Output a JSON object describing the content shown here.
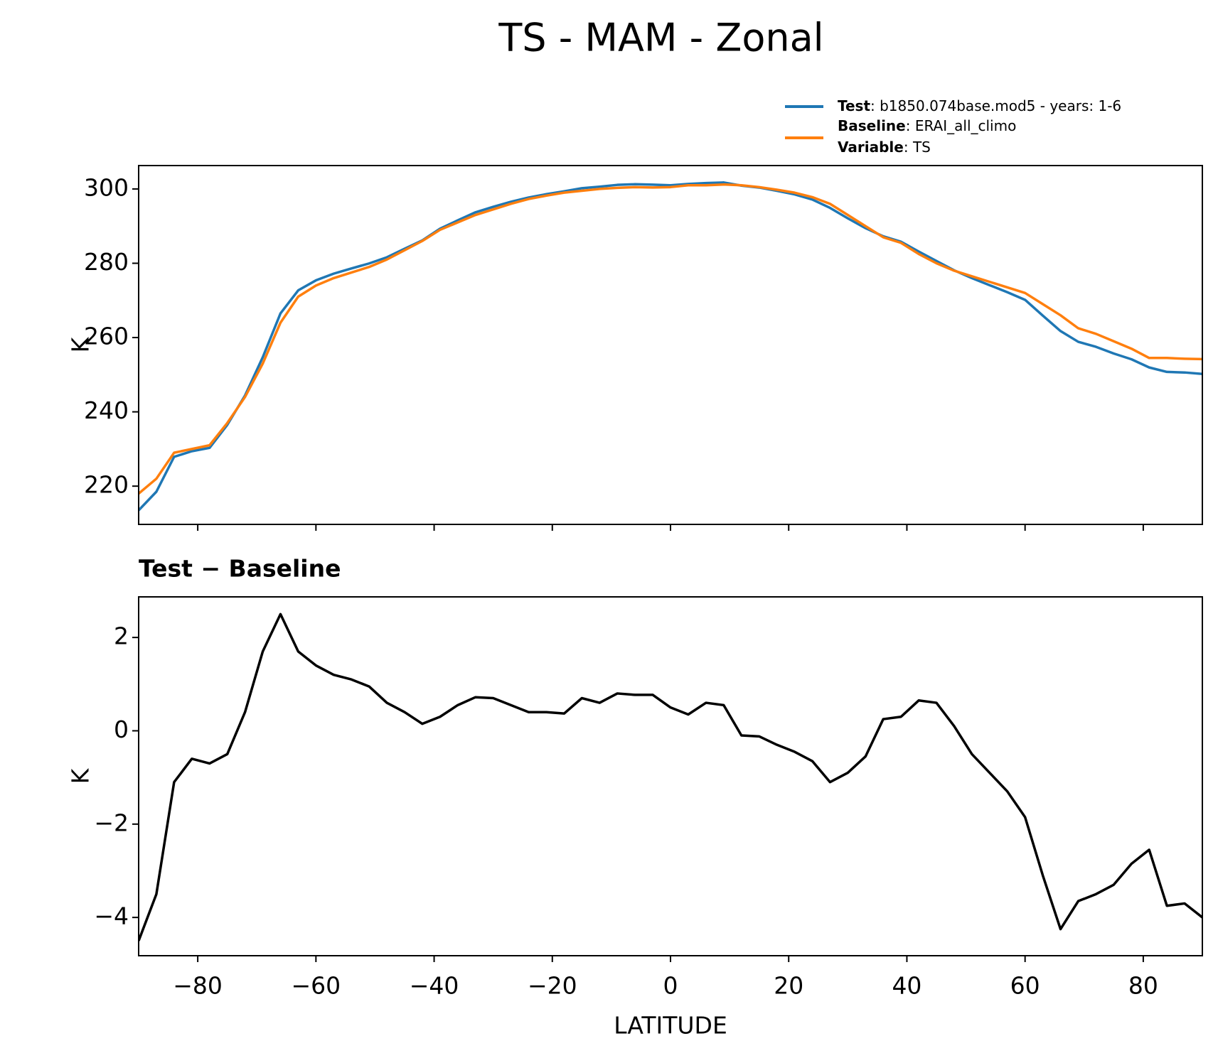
{
  "title": "TS - MAM - Zonal",
  "legend": {
    "variable": {
      "name": "Variable",
      "value": ": TS"
    }
  },
  "chart_data": [
    {
      "type": "line",
      "ylabel": "K",
      "x": [
        -90,
        -87,
        -84,
        -81,
        -78,
        -75,
        -72,
        -69,
        -66,
        -63,
        -60,
        -57,
        -54,
        -51,
        -48,
        -45,
        -42,
        -39,
        -36,
        -33,
        -30,
        -27,
        -24,
        -21,
        -18,
        -15,
        -12,
        -9,
        -6,
        -3,
        0,
        3,
        6,
        9,
        12,
        15,
        18,
        21,
        24,
        27,
        30,
        33,
        36,
        39,
        42,
        45,
        48,
        51,
        54,
        57,
        60,
        63,
        66,
        69,
        72,
        75,
        78,
        81,
        84,
        87,
        90
      ],
      "series": [
        {
          "name": "Test",
          "description": ": b1850.074base.mod5 - years: 1-6",
          "color": "#1f77b4",
          "values": [
            213.5,
            218.5,
            227.9,
            229.4,
            230.3,
            236.5,
            244.4,
            254.7,
            266.5,
            272.7,
            275.4,
            277.2,
            278.6,
            279.95,
            281.6,
            283.9,
            286.15,
            289.3,
            291.55,
            293.72,
            295.2,
            296.55,
            297.7,
            298.6,
            299.37,
            300.2,
            300.6,
            301.1,
            301.27,
            301.17,
            301,
            301.35,
            301.6,
            301.75,
            300.9,
            300.38,
            299.5,
            298.55,
            297.15,
            294.9,
            292.1,
            289.45,
            287.25,
            285.8,
            283.15,
            280.6,
            278.1,
            276,
            274.1,
            272.2,
            270.15,
            265.9,
            261.75,
            258.85,
            257.5,
            255.7,
            254.15,
            251.95,
            250.75,
            250.6,
            250.2
          ]
        },
        {
          "name": "Baseline",
          "description": ": ERAI_all_climo",
          "color": "#ff7f0e",
          "values": [
            218,
            222,
            229,
            230,
            231,
            237,
            244,
            253,
            264,
            271,
            274,
            276,
            277.5,
            279,
            281,
            283.5,
            286,
            289,
            291,
            293,
            294.5,
            296,
            297.3,
            298.2,
            299,
            299.5,
            300,
            300.3,
            300.5,
            300.4,
            300.5,
            301,
            301,
            301.2,
            301,
            300.5,
            299.8,
            299,
            297.8,
            296,
            293,
            290,
            287,
            285.5,
            282.5,
            280,
            278,
            276.5,
            275,
            273.5,
            272,
            269,
            266,
            262.5,
            261,
            259,
            257,
            254.5,
            254.5,
            254.3,
            254.2
          ]
        }
      ],
      "xlim": [
        -90,
        90
      ],
      "xticks": [
        -80,
        -60,
        -40,
        -20,
        0,
        20,
        40,
        60,
        80
      ],
      "ylim": [
        209.7,
        306.3
      ],
      "yticks": [
        220,
        240,
        260,
        280,
        300
      ]
    },
    {
      "type": "line",
      "title": "Test − Baseline",
      "ylabel": "K",
      "xlabel": "LATITUDE",
      "x": [
        -90,
        -87,
        -84,
        -81,
        -78,
        -75,
        -72,
        -69,
        -66,
        -63,
        -60,
        -57,
        -54,
        -51,
        -48,
        -45,
        -42,
        -39,
        -36,
        -33,
        -30,
        -27,
        -24,
        -21,
        -18,
        -15,
        -12,
        -9,
        -6,
        -3,
        0,
        3,
        6,
        9,
        12,
        15,
        18,
        21,
        24,
        27,
        30,
        33,
        36,
        39,
        42,
        45,
        48,
        51,
        54,
        57,
        60,
        63,
        66,
        69,
        72,
        75,
        78,
        81,
        84,
        87,
        90
      ],
      "series": [
        {
          "color": "#000000",
          "values": [
            -4.5,
            -3.5,
            -1.1,
            -0.6,
            -0.7,
            -0.5,
            0.4,
            1.7,
            2.5,
            1.7,
            1.4,
            1.2,
            1.1,
            0.95,
            0.6,
            0.4,
            0.15,
            0.3,
            0.55,
            0.72,
            0.7,
            0.55,
            0.4,
            0.4,
            0.37,
            0.7,
            0.6,
            0.8,
            0.77,
            0.77,
            0.5,
            0.35,
            0.6,
            0.55,
            -0.1,
            -0.12,
            -0.3,
            -0.45,
            -0.65,
            -1.1,
            -0.9,
            -0.55,
            0.25,
            0.3,
            0.65,
            0.6,
            0.1,
            -0.5,
            -0.9,
            -1.3,
            -1.85,
            -3.1,
            -4.25,
            -3.65,
            -3.5,
            -3.3,
            -2.85,
            -2.55,
            -3.75,
            -3.7,
            -4
          ]
        }
      ],
      "xlim": [
        -90,
        90
      ],
      "xticks": [
        {
          "value": -80,
          "label": "−80"
        },
        {
          "value": -60,
          "label": "−60"
        },
        {
          "value": -40,
          "label": "−40"
        },
        {
          "value": -20,
          "label": "−20"
        },
        0,
        20,
        40,
        60,
        80
      ],
      "ylim": [
        -4.82,
        2.87
      ],
      "yticks": [
        {
          "value": -4,
          "label": "−4"
        },
        {
          "value": -2,
          "label": "−2"
        },
        0,
        2
      ]
    }
  ]
}
